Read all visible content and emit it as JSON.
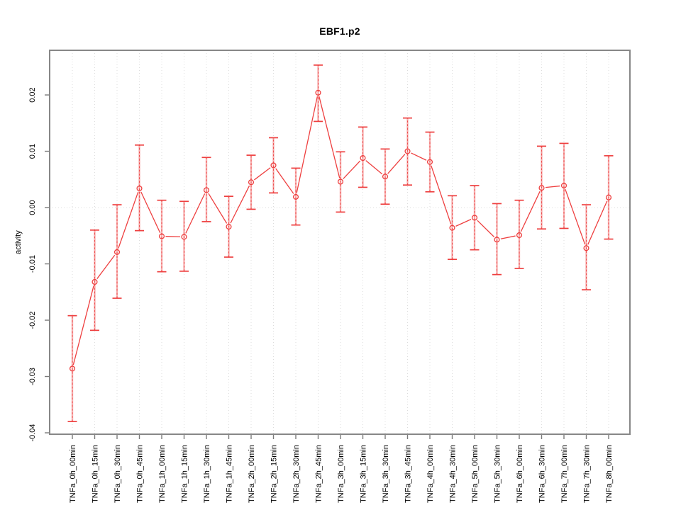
{
  "figure": {
    "background": "#ffffff"
  },
  "chart_data": {
    "type": "line",
    "title": "EBF1.p2",
    "xlabel": "",
    "ylabel": "activity",
    "legend_position": "none",
    "point_marker": "open-circle",
    "error_bars": true,
    "grid": {
      "vertical": "dotted line at every category",
      "horizontal": "dotted line at y=0 only"
    },
    "categories": [
      "TNFa_0h_00min",
      "TNFa_0h_15min",
      "TNFa_0h_30min",
      "TNFa_0h_45min",
      "TNFa_1h_00min",
      "TNFa_1h_15min",
      "TNFa_1h_30min",
      "TNFa_1h_45min",
      "TNFa_2h_00min",
      "TNFa_2h_15min",
      "TNFa_2h_30min",
      "TNFa_2h_45min",
      "TNFa_3h_00min",
      "TNFa_3h_15min",
      "TNFa_3h_30min",
      "TNFa_3h_45min",
      "TNFa_4h_00min",
      "TNFa_4h_30min",
      "TNFa_5h_00min",
      "TNFa_5h_30min",
      "TNFa_6h_00min",
      "TNFa_6h_30min",
      "TNFa_7h_00min",
      "TNFa_7h_30min",
      "TNFa_8h_00min"
    ],
    "series": [
      {
        "name": "activity",
        "values": [
          -0.0286,
          -0.0132,
          -0.0079,
          0.0034,
          -0.0051,
          -0.0052,
          0.0031,
          -0.0034,
          0.0045,
          0.0075,
          0.0019,
          0.0204,
          0.0046,
          0.0088,
          0.0055,
          0.01,
          0.0081,
          -0.0036,
          -0.0018,
          -0.0057,
          -0.0049,
          0.0035,
          0.0039,
          -0.0072,
          0.0018
        ],
        "error_low": [
          -0.038,
          -0.0218,
          -0.0161,
          -0.0041,
          -0.0114,
          -0.0113,
          -0.0025,
          -0.0088,
          -0.0003,
          0.0026,
          -0.0031,
          0.0153,
          -0.0008,
          0.0036,
          0.0006,
          0.004,
          0.0028,
          -0.0092,
          -0.0075,
          -0.0119,
          -0.0108,
          -0.0038,
          -0.0037,
          -0.0146,
          -0.0056
        ],
        "error_high": [
          -0.0192,
          -0.004,
          0.0005,
          0.0111,
          0.0013,
          0.0011,
          0.0089,
          0.002,
          0.0093,
          0.0124,
          0.007,
          0.0253,
          0.0099,
          0.0143,
          0.0104,
          0.0159,
          0.0134,
          0.0021,
          0.0039,
          0.0007,
          0.0013,
          0.0109,
          0.0114,
          0.0005,
          0.0092
        ]
      }
    ],
    "yticks": [
      0.02,
      0.01,
      0,
      -0.01,
      -0.02,
      -0.03,
      -0.04
    ],
    "ytick_labels": [
      "0.02",
      "0.01",
      "0.00",
      "-0.01",
      "-0.02",
      "-0.03",
      "-0.04"
    ],
    "ylim": [
      -0.04025,
      0.02793
    ],
    "colors": {
      "series": "#ee3f3f",
      "error_stem": "rgba(238,63,63,0.40)",
      "gridline": "#dcdcdc",
      "box_border": "#878787",
      "tick": "#7a7a7a",
      "text": "#000000"
    }
  }
}
